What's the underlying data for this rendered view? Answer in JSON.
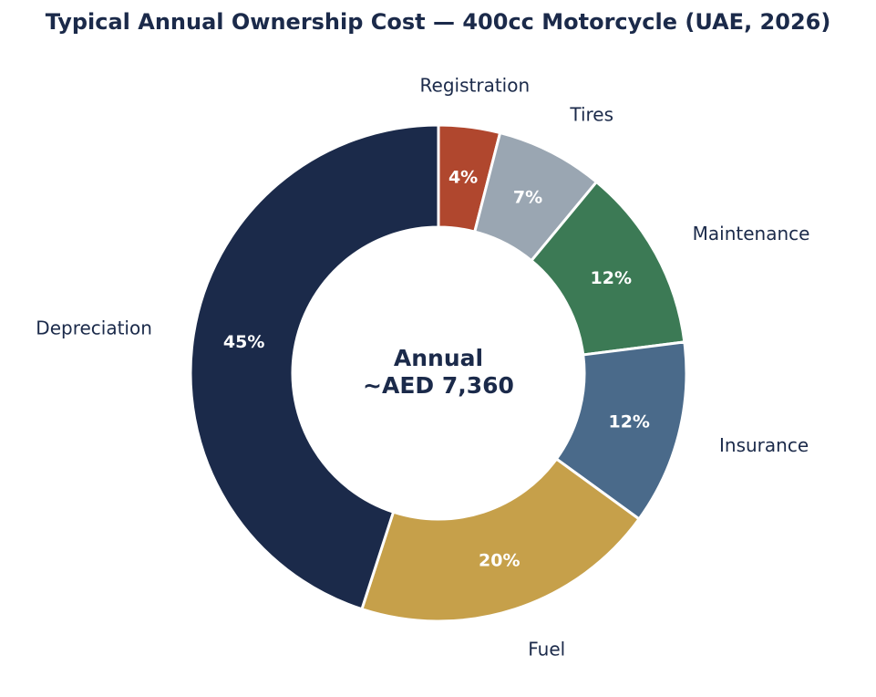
{
  "chart_data": {
    "type": "pie",
    "variant": "donut",
    "title": "Typical Annual Ownership Cost — 400cc Motorcycle (UAE, 2026)",
    "center_label": [
      "Annual",
      "~AED 7,360"
    ],
    "direction": "clockwise",
    "start": "top",
    "slices": [
      {
        "label": "Registration",
        "value": 4,
        "display": "4%",
        "color": "#b0472e"
      },
      {
        "label": "Tires",
        "value": 7,
        "display": "7%",
        "color": "#9aa6b2"
      },
      {
        "label": "Maintenance",
        "value": 12,
        "display": "12%",
        "color": "#3c7a55"
      },
      {
        "label": "Insurance",
        "value": 12,
        "display": "12%",
        "color": "#4a6a8a"
      },
      {
        "label": "Fuel",
        "value": 20,
        "display": "20%",
        "color": "#c6a04a"
      },
      {
        "label": "Depreciation",
        "value": 45,
        "display": "45%",
        "color": "#1b2a4a"
      }
    ]
  }
}
